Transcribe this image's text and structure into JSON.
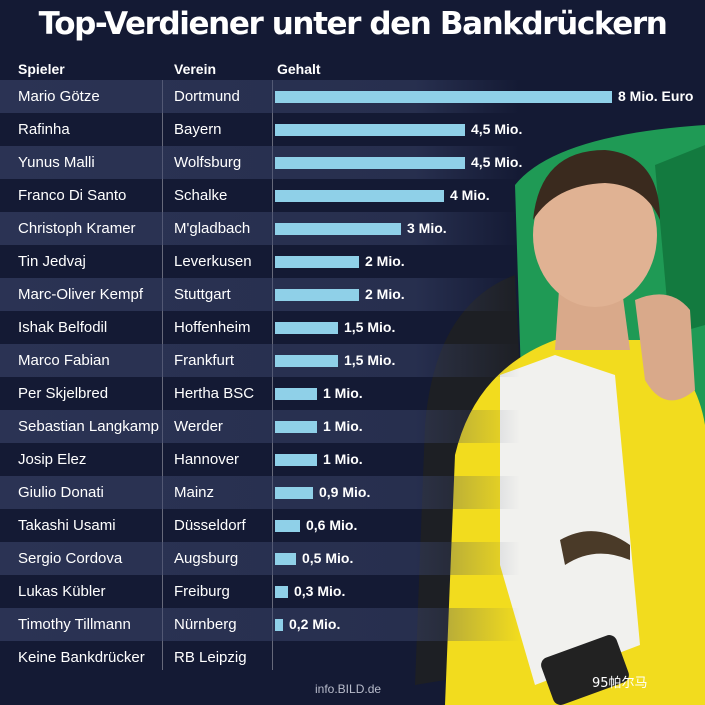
{
  "chart_data": {
    "type": "bar",
    "title": "Top-Verdiener unter den Bankdrückern",
    "columns": {
      "player": "Spieler",
      "club": "Verein",
      "salary": "Gehalt"
    },
    "rows": [
      {
        "player": "Mario Götze",
        "club": "Dortmund",
        "value": 8,
        "label": "8 Mio. Euro"
      },
      {
        "player": "Rafinha",
        "club": "Bayern",
        "value": 4.5,
        "label": "4,5 Mio."
      },
      {
        "player": "Yunus Malli",
        "club": "Wolfsburg",
        "value": 4.5,
        "label": "4,5 Mio."
      },
      {
        "player": "Franco Di Santo",
        "club": "Schalke",
        "value": 4,
        "label": "4 Mio."
      },
      {
        "player": "Christoph Kramer",
        "club": "M'gladbach",
        "value": 3,
        "label": "3 Mio."
      },
      {
        "player": "Tin Jedvaj",
        "club": "Leverkusen",
        "value": 2,
        "label": "2 Mio."
      },
      {
        "player": "Marc-Oliver Kempf",
        "club": "Stuttgart",
        "value": 2,
        "label": "2 Mio."
      },
      {
        "player": "Ishak Belfodil",
        "club": "Hoffenheim",
        "value": 1.5,
        "label": "1,5 Mio."
      },
      {
        "player": "Marco Fabian",
        "club": "Frankfurt",
        "value": 1.5,
        "label": "1,5 Mio."
      },
      {
        "player": "Per Skjelbred",
        "club": "Hertha BSC",
        "value": 1,
        "label": "1 Mio."
      },
      {
        "player": "Sebastian Langkamp",
        "club": "Werder",
        "value": 1,
        "label": "1 Mio."
      },
      {
        "player": "Josip Elez",
        "club": "Hannover",
        "value": 1,
        "label": "1 Mio."
      },
      {
        "player": "Giulio Donati",
        "club": "Mainz",
        "value": 0.9,
        "label": "0,9 Mio."
      },
      {
        "player": "Takashi Usami",
        "club": "Düsseldorf",
        "value": 0.6,
        "label": "0,6 Mio."
      },
      {
        "player": "Sergio Cordova",
        "club": "Augsburg",
        "value": 0.5,
        "label": "0,5 Mio."
      },
      {
        "player": "Lukas Kübler",
        "club": "Freiburg",
        "value": 0.3,
        "label": "0,3 Mio."
      },
      {
        "player": "Timothy Tillmann",
        "club": "Nürnberg",
        "value": 0.2,
        "label": "0,2 Mio."
      },
      {
        "player": "Keine Bankdrücker",
        "club": "RB Leipzig",
        "value": null,
        "label": ""
      }
    ],
    "xlim": [
      0,
      8
    ],
    "colors": {
      "bar": "#8fd0e8",
      "background": "#141a34",
      "jersey": "#f2dc1e",
      "seat": "#1f9a55"
    }
  },
  "source": "info.BILD.de",
  "watermark": "95帕尔马"
}
